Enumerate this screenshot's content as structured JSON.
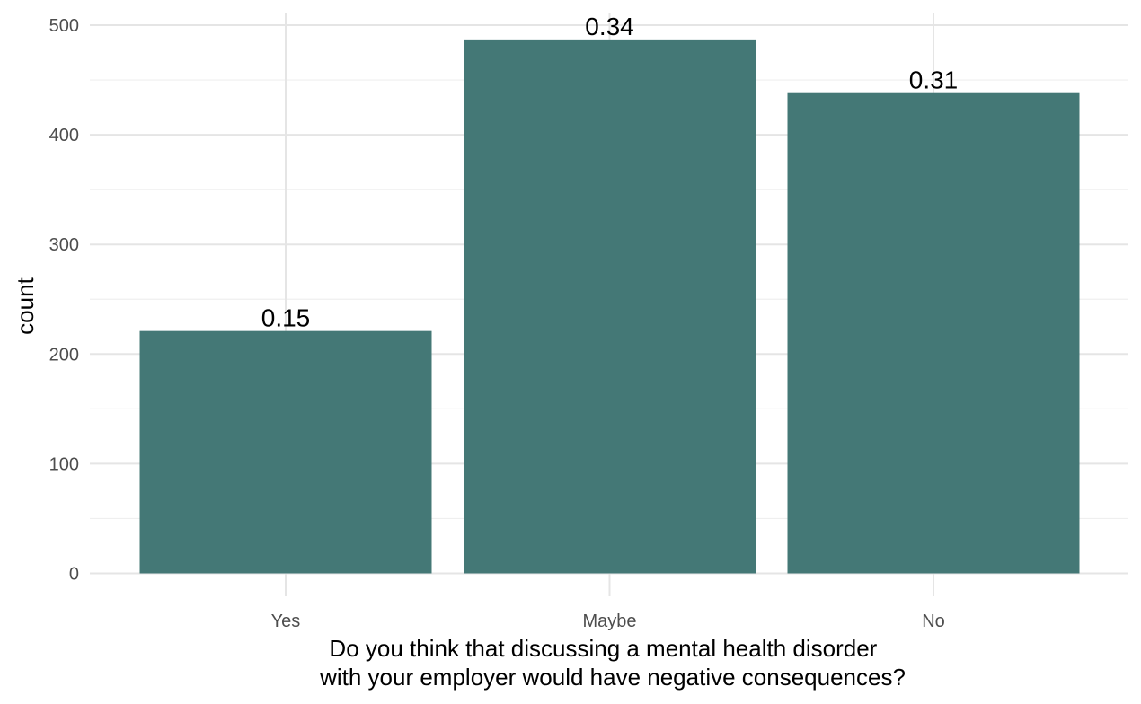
{
  "chart_data": {
    "type": "bar",
    "categories": [
      "Yes",
      "Maybe",
      "No"
    ],
    "values": [
      221,
      487,
      438
    ],
    "data_labels": [
      "0.15",
      "0.34",
      "0.31"
    ],
    "title": "",
    "xlabel_lines": [
      "Do you think that discussing a mental health disorder",
      "with your employer would have negative consequences?"
    ],
    "ylabel": "count",
    "ylim": [
      0,
      500
    ],
    "yticks": [
      0,
      100,
      200,
      300,
      400,
      500
    ],
    "grid": true,
    "legend": "none",
    "bar_color": "#447876",
    "background_color": "#ffffff"
  }
}
